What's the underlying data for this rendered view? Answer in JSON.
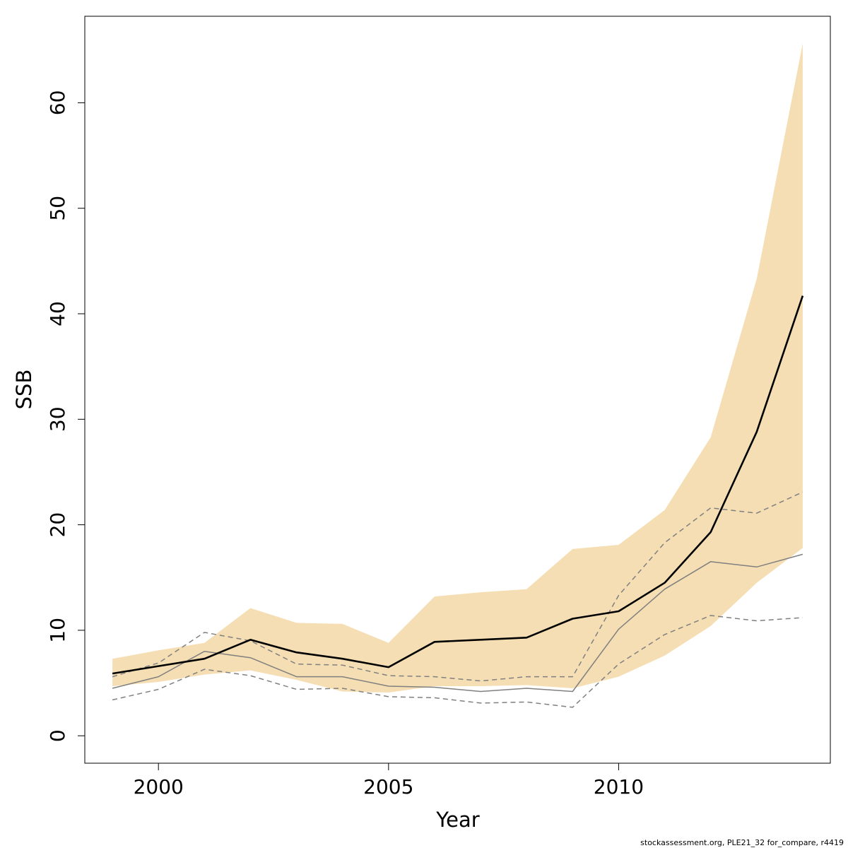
{
  "chart_data": {
    "type": "line",
    "xlabel": "Year",
    "ylabel": "SSB",
    "xlim": [
      1998.4,
      2014.6
    ],
    "ylim": [
      -2.6,
      68.2
    ],
    "x_ticks": [
      2000,
      2005,
      2010
    ],
    "y_ticks": [
      0,
      10,
      20,
      30,
      40,
      50,
      60
    ],
    "grid": false,
    "x": [
      1999,
      2000,
      2001,
      2002,
      2003,
      2004,
      2005,
      2006,
      2007,
      2008,
      2009,
      2010,
      2011,
      2012,
      2013,
      2014
    ],
    "band": {
      "color": "#f5deb3",
      "upper": [
        7.3,
        8.1,
        8.8,
        12.1,
        10.7,
        10.6,
        8.8,
        13.2,
        13.6,
        13.9,
        17.7,
        18.1,
        21.4,
        28.3,
        43.3,
        65.6
      ],
      "lower": [
        4.7,
        5.1,
        5.8,
        6.2,
        5.3,
        4.2,
        4.1,
        4.7,
        4.7,
        4.8,
        4.5,
        5.6,
        7.6,
        10.4,
        14.5,
        17.8
      ]
    },
    "series": [
      {
        "style": "solid-thick",
        "color": "#000000",
        "values": [
          5.9,
          6.6,
          7.3,
          9.1,
          7.9,
          7.3,
          6.5,
          8.9,
          9.1,
          9.3,
          11.1,
          11.8,
          14.5,
          19.3,
          28.8,
          41.7
        ]
      },
      {
        "style": "solid-thin",
        "color": "#808080",
        "values": [
          4.5,
          5.6,
          8.0,
          7.4,
          5.6,
          5.6,
          4.7,
          4.6,
          4.2,
          4.5,
          4.2,
          10.1,
          13.9,
          16.5,
          16.0,
          17.2
        ]
      },
      {
        "style": "dashed",
        "color": "#808080",
        "values": [
          5.6,
          6.9,
          9.8,
          9.0,
          6.8,
          6.7,
          5.7,
          5.6,
          5.2,
          5.6,
          5.6,
          13.3,
          18.3,
          21.6,
          21.1,
          23.1
        ]
      },
      {
        "style": "dashed",
        "color": "#808080",
        "values": [
          3.4,
          4.4,
          6.3,
          5.7,
          4.4,
          4.5,
          3.7,
          3.6,
          3.1,
          3.2,
          2.7,
          6.8,
          9.6,
          11.4,
          10.9,
          11.2
        ]
      }
    ]
  },
  "footnote": "stockassessment.org, PLE21_32 for_compare, r4419"
}
